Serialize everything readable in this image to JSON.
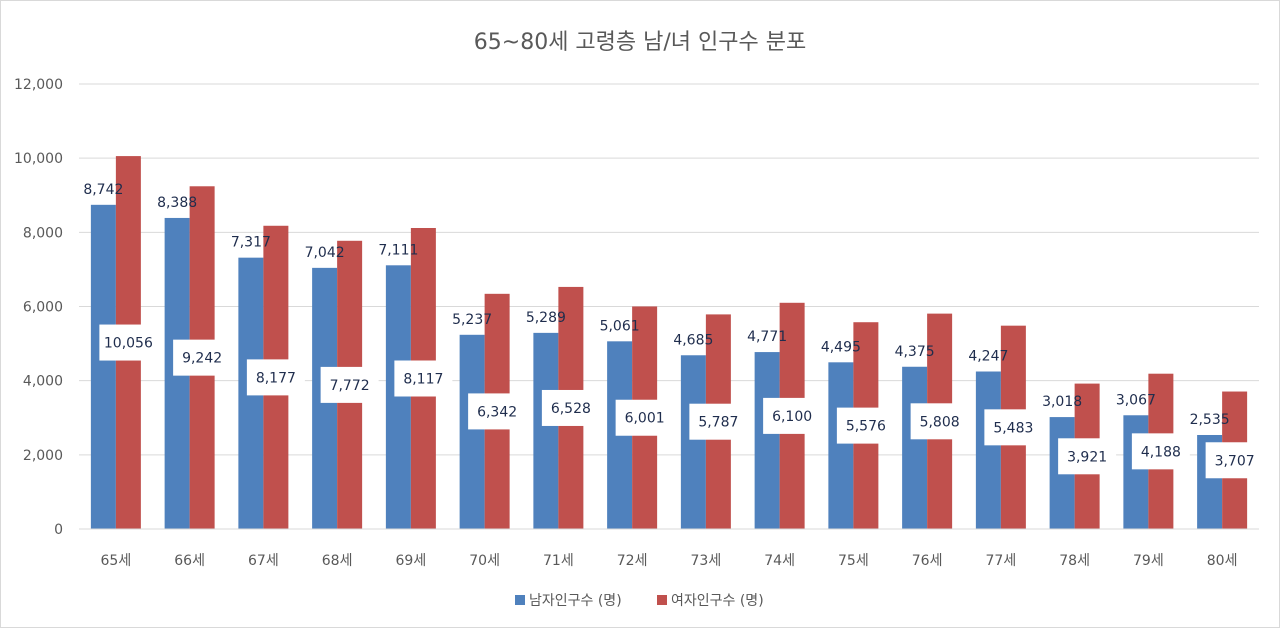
{
  "chart_data": {
    "type": "bar",
    "title": "65~80세 고령층 남/녀 인구수 분포",
    "categories": [
      "65세",
      "66세",
      "67세",
      "68세",
      "69세",
      "70세",
      "71세",
      "72세",
      "73세",
      "74세",
      "75세",
      "76세",
      "77세",
      "78세",
      "79세",
      "80세"
    ],
    "series": [
      {
        "name": "남자인구수 (명)",
        "color": "#4f81bd",
        "values": [
          8742,
          8388,
          7317,
          7042,
          7111,
          5237,
          5289,
          5061,
          4685,
          4771,
          4495,
          4375,
          4247,
          3018,
          3067,
          2535
        ],
        "labels": [
          "8,742",
          "8,388",
          "7,317",
          "7,042",
          "7,111",
          "5,237",
          "5,289",
          "5,061",
          "4,685",
          "4,771",
          "4,495",
          "4,375",
          "4,247",
          "3,018",
          "3,067",
          "2,535"
        ]
      },
      {
        "name": "여자인구수 (명)",
        "color": "#c0504d",
        "values": [
          10056,
          9242,
          8177,
          7772,
          8117,
          6342,
          6528,
          6001,
          5787,
          6100,
          5576,
          5808,
          5483,
          3921,
          4188,
          3707
        ],
        "labels": [
          "10,056",
          "9,242",
          "8,177",
          "7,772",
          "8,117",
          "6,342",
          "6,528",
          "6,001",
          "5,787",
          "6,100",
          "5,576",
          "5,808",
          "5,483",
          "3,921",
          "4,188",
          "3,707"
        ]
      }
    ],
    "ylim": [
      0,
      12000
    ],
    "yticks": [
      0,
      2000,
      4000,
      6000,
      8000,
      10000,
      12000
    ],
    "ytick_labels": [
      "0",
      "2,000",
      "4,000",
      "6,000",
      "8,000",
      "10,000",
      "12,000"
    ],
    "grid": true,
    "legend_position": "bottom"
  }
}
